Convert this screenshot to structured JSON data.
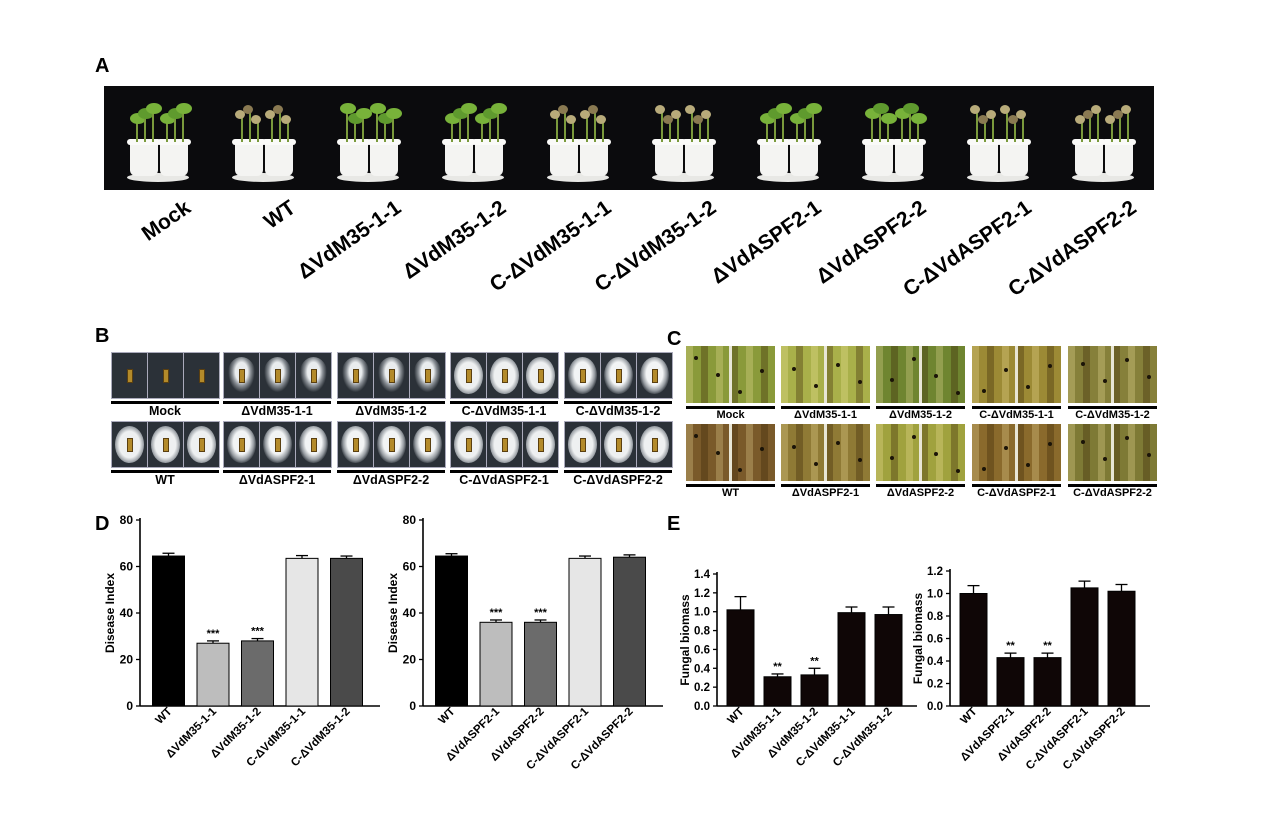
{
  "panel_letters": {
    "a": "A",
    "b": "B",
    "c": "C",
    "d": "D",
    "e": "E"
  },
  "panel_a": {
    "labels": [
      "Mock",
      "WT",
      "ΔVdM35-1-1",
      "ΔVdM35-1-2",
      "C-ΔVdM35-1-1",
      "C-ΔVdM35-1-2",
      "ΔVdASPF2-1",
      "ΔVdASPF2-2",
      "C-ΔVdASPF2-1",
      "C-ΔVdASPF2-2"
    ]
  },
  "panel_b": {
    "row1_labels": [
      "Mock",
      "ΔVdM35-1-1",
      "ΔVdM35-1-2",
      "C-ΔVdM35-1-1",
      "C-ΔVdM35-1-2"
    ],
    "row2_labels": [
      "WT",
      "ΔVdASPF2-1",
      "ΔVdASPF2-2",
      "C-ΔVdASPF2-1",
      "C-ΔVdASPF2-2"
    ]
  },
  "panel_c": {
    "row1_labels": [
      "Mock",
      "ΔVdM35-1-1",
      "ΔVdM35-1-2",
      "C-ΔVdM35-1-1",
      "C-ΔVdM35-1-2"
    ],
    "row2_labels": [
      "WT",
      "ΔVdASPF2-1",
      "ΔVdASPF2-2",
      "C-ΔVdASPF2-1",
      "C-ΔVdASPF2-2"
    ]
  },
  "chart_data": [
    {
      "type": "bar",
      "panel": "D",
      "categories": [
        "WT",
        "ΔVdM35-1-1",
        "ΔVdM35-1-2",
        "C-ΔVdM35-1-1",
        "C-ΔVdM35-1-2"
      ],
      "values": [
        64.5,
        27,
        28,
        63.5,
        63.5
      ],
      "errors": [
        1.2,
        1.0,
        1.0,
        1.2,
        1.0
      ],
      "significance": [
        "",
        "***",
        "***",
        "",
        ""
      ],
      "colors": [
        "#000000",
        "#bdbdbd",
        "#6b6b6b",
        "#e6e6e6",
        "#4a4a4a"
      ],
      "xlabel": "",
      "ylabel": "Disease Index",
      "ylim": [
        0,
        80
      ],
      "yticks": [
        "0",
        "20",
        "40",
        "60",
        "80"
      ]
    },
    {
      "type": "bar",
      "panel": "D",
      "categories": [
        "WT",
        "ΔVdASPF2-1",
        "ΔVdASPF2-2",
        "C-ΔVdASPF2-1",
        "C-ΔVdASPF2-2"
      ],
      "values": [
        64.5,
        36,
        36,
        63.5,
        64
      ],
      "errors": [
        1.0,
        1.0,
        1.0,
        1.0,
        1.0
      ],
      "significance": [
        "",
        "***",
        "***",
        "",
        ""
      ],
      "colors": [
        "#000000",
        "#bdbdbd",
        "#6b6b6b",
        "#e6e6e6",
        "#4a4a4a"
      ],
      "xlabel": "",
      "ylabel": "Disease Index",
      "ylim": [
        0,
        80
      ],
      "yticks": [
        "0",
        "20",
        "40",
        "60",
        "80"
      ]
    },
    {
      "type": "bar",
      "panel": "E",
      "categories": [
        "WT",
        "ΔVdM35-1-1",
        "ΔVdM35-1-2",
        "C-ΔVdM35-1-1",
        "C-ΔVdM35-1-2"
      ],
      "values": [
        1.02,
        0.31,
        0.33,
        0.99,
        0.97
      ],
      "errors": [
        0.14,
        0.03,
        0.07,
        0.06,
        0.08
      ],
      "significance": [
        "",
        "**",
        "**",
        "",
        ""
      ],
      "colors": [
        "#0f0606",
        "#0f0606",
        "#0f0606",
        "#0f0606",
        "#0f0606"
      ],
      "xlabel": "",
      "ylabel": "Fungal biomass",
      "ylim": [
        0,
        1.4
      ],
      "yticks": [
        "0.0",
        "0.2",
        "0.4",
        "0.6",
        "0.8",
        "1.0",
        "1.2",
        "1.4"
      ]
    },
    {
      "type": "bar",
      "panel": "E",
      "categories": [
        "WT",
        "ΔVdASPF2-1",
        "ΔVdASPF2-2",
        "C-ΔVdASPF2-1",
        "C-ΔVdASPF2-2"
      ],
      "values": [
        1.0,
        0.43,
        0.43,
        1.05,
        1.02
      ],
      "errors": [
        0.07,
        0.04,
        0.04,
        0.06,
        0.06
      ],
      "significance": [
        "",
        "**",
        "**",
        "",
        ""
      ],
      "colors": [
        "#0f0606",
        "#0f0606",
        "#0f0606",
        "#0f0606",
        "#0f0606"
      ],
      "xlabel": "",
      "ylabel": "Fungal biomass",
      "ylim": [
        0,
        1.2
      ],
      "yticks": [
        "0.0",
        "0.2",
        "0.4",
        "0.6",
        "0.8",
        "1.0",
        "1.2"
      ]
    }
  ]
}
